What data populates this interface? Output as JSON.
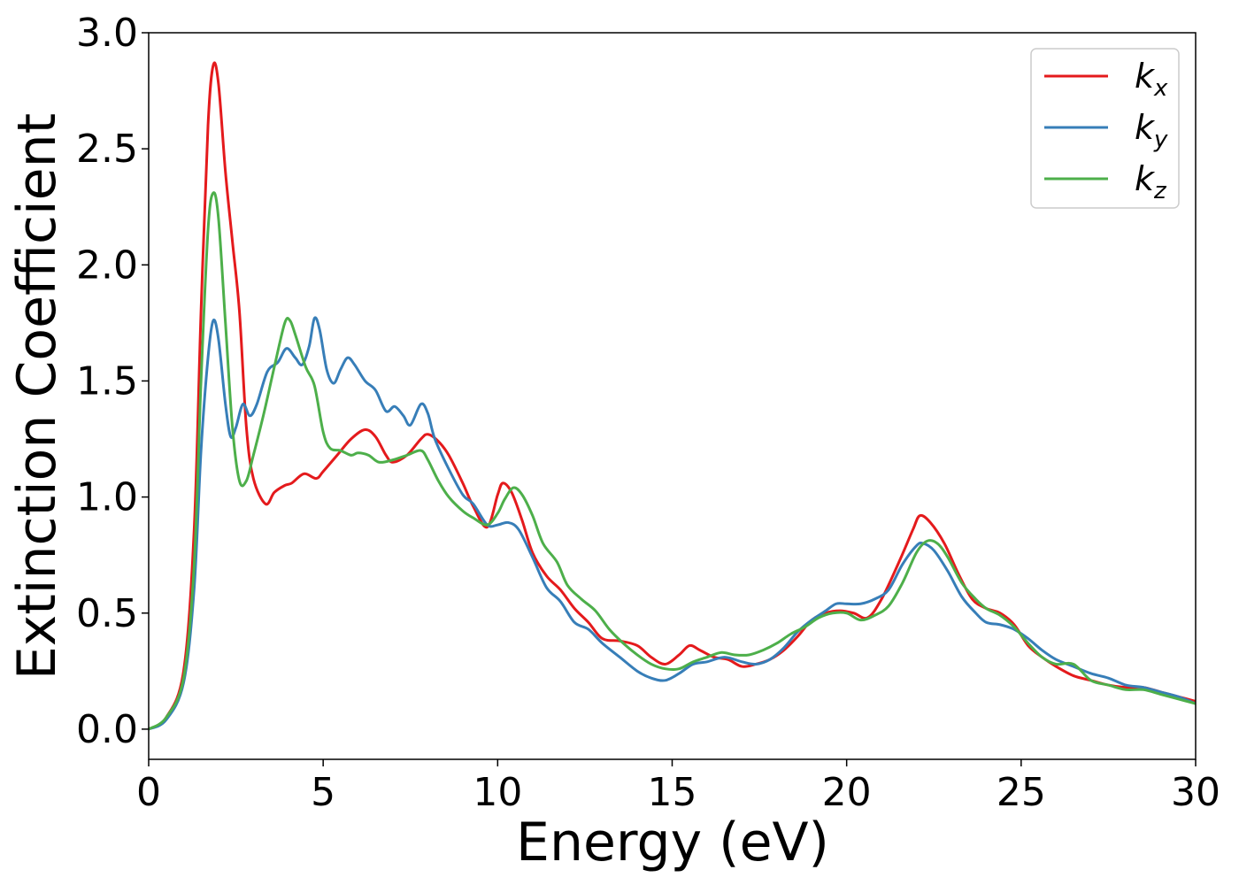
{
  "chart_data": {
    "type": "line",
    "title": "",
    "xlabel": "Energy (eV)",
    "ylabel": "Extinction Coefficient",
    "xlim": [
      0,
      30
    ],
    "ylim": [
      -0.13,
      3.0
    ],
    "xticks": [
      0,
      5,
      10,
      15,
      20,
      25,
      30
    ],
    "xtick_labels": [
      "0",
      "5",
      "10",
      "15",
      "20",
      "25",
      "30"
    ],
    "yticks": [
      0.0,
      0.5,
      1.0,
      1.5,
      2.0,
      2.5,
      3.0
    ],
    "ytick_labels": [
      "0.0",
      "0.5",
      "1.0",
      "1.5",
      "2.0",
      "2.5",
      "3.0"
    ],
    "grid": false,
    "legend_position": "top-right",
    "series": [
      {
        "name": "k_x",
        "label_main": "k",
        "label_sub": "x",
        "color": "#e41a1c",
        "points": [
          [
            0,
            0
          ],
          [
            0.5,
            0.05
          ],
          [
            1.0,
            0.25
          ],
          [
            1.3,
            0.85
          ],
          [
            1.5,
            1.8
          ],
          [
            1.7,
            2.6
          ],
          [
            1.85,
            2.86
          ],
          [
            2.0,
            2.78
          ],
          [
            2.2,
            2.4
          ],
          [
            2.4,
            2.1
          ],
          [
            2.6,
            1.8
          ],
          [
            2.8,
            1.3
          ],
          [
            3.0,
            1.08
          ],
          [
            3.35,
            0.97
          ],
          [
            3.6,
            1.02
          ],
          [
            3.9,
            1.05
          ],
          [
            4.1,
            1.06
          ],
          [
            4.45,
            1.1
          ],
          [
            4.8,
            1.08
          ],
          [
            5.0,
            1.11
          ],
          [
            5.4,
            1.18
          ],
          [
            5.8,
            1.25
          ],
          [
            6.2,
            1.29
          ],
          [
            6.5,
            1.26
          ],
          [
            6.8,
            1.18
          ],
          [
            7.0,
            1.15
          ],
          [
            7.4,
            1.18
          ],
          [
            7.8,
            1.25
          ],
          [
            8.0,
            1.27
          ],
          [
            8.3,
            1.24
          ],
          [
            8.6,
            1.18
          ],
          [
            9.0,
            1.06
          ],
          [
            9.3,
            0.96
          ],
          [
            9.7,
            0.87
          ],
          [
            10.0,
            1.01
          ],
          [
            10.15,
            1.06
          ],
          [
            10.4,
            1.02
          ],
          [
            10.7,
            0.9
          ],
          [
            11.0,
            0.76
          ],
          [
            11.4,
            0.66
          ],
          [
            11.8,
            0.6
          ],
          [
            12.2,
            0.52
          ],
          [
            12.6,
            0.46
          ],
          [
            13.0,
            0.39
          ],
          [
            13.5,
            0.38
          ],
          [
            14.0,
            0.36
          ],
          [
            14.4,
            0.31
          ],
          [
            14.8,
            0.28
          ],
          [
            15.2,
            0.32
          ],
          [
            15.5,
            0.36
          ],
          [
            15.8,
            0.34
          ],
          [
            16.2,
            0.31
          ],
          [
            16.6,
            0.3
          ],
          [
            17.0,
            0.27
          ],
          [
            17.4,
            0.28
          ],
          [
            17.8,
            0.3
          ],
          [
            18.2,
            0.34
          ],
          [
            18.6,
            0.4
          ],
          [
            19.0,
            0.47
          ],
          [
            19.4,
            0.5
          ],
          [
            19.8,
            0.51
          ],
          [
            20.2,
            0.5
          ],
          [
            20.6,
            0.48
          ],
          [
            21.0,
            0.56
          ],
          [
            21.5,
            0.72
          ],
          [
            21.9,
            0.86
          ],
          [
            22.1,
            0.92
          ],
          [
            22.4,
            0.89
          ],
          [
            22.8,
            0.8
          ],
          [
            23.2,
            0.67
          ],
          [
            23.6,
            0.56
          ],
          [
            24.0,
            0.52
          ],
          [
            24.4,
            0.5
          ],
          [
            24.8,
            0.45
          ],
          [
            25.2,
            0.36
          ],
          [
            25.6,
            0.31
          ],
          [
            26.0,
            0.27
          ],
          [
            26.5,
            0.23
          ],
          [
            27.0,
            0.21
          ],
          [
            27.5,
            0.19
          ],
          [
            28.0,
            0.18
          ],
          [
            28.5,
            0.18
          ],
          [
            29.0,
            0.16
          ],
          [
            29.5,
            0.14
          ],
          [
            30,
            0.12
          ]
        ]
      },
      {
        "name": "k_y",
        "label_main": "k",
        "label_sub": "y",
        "color": "#377eb8",
        "points": [
          [
            0,
            0
          ],
          [
            0.5,
            0.04
          ],
          [
            1.0,
            0.2
          ],
          [
            1.3,
            0.6
          ],
          [
            1.5,
            1.2
          ],
          [
            1.7,
            1.6
          ],
          [
            1.85,
            1.76
          ],
          [
            2.0,
            1.68
          ],
          [
            2.2,
            1.4
          ],
          [
            2.35,
            1.26
          ],
          [
            2.5,
            1.3
          ],
          [
            2.7,
            1.4
          ],
          [
            2.9,
            1.35
          ],
          [
            3.1,
            1.4
          ],
          [
            3.4,
            1.54
          ],
          [
            3.7,
            1.58
          ],
          [
            3.95,
            1.64
          ],
          [
            4.2,
            1.6
          ],
          [
            4.4,
            1.57
          ],
          [
            4.6,
            1.65
          ],
          [
            4.75,
            1.77
          ],
          [
            4.9,
            1.72
          ],
          [
            5.1,
            1.55
          ],
          [
            5.3,
            1.49
          ],
          [
            5.5,
            1.55
          ],
          [
            5.7,
            1.6
          ],
          [
            5.9,
            1.57
          ],
          [
            6.2,
            1.5
          ],
          [
            6.5,
            1.46
          ],
          [
            6.8,
            1.37
          ],
          [
            7.05,
            1.39
          ],
          [
            7.3,
            1.35
          ],
          [
            7.5,
            1.31
          ],
          [
            7.8,
            1.4
          ],
          [
            8.0,
            1.36
          ],
          [
            8.2,
            1.25
          ],
          [
            8.6,
            1.12
          ],
          [
            9.0,
            1.01
          ],
          [
            9.3,
            0.97
          ],
          [
            9.7,
            0.88
          ],
          [
            10.0,
            0.88
          ],
          [
            10.3,
            0.89
          ],
          [
            10.6,
            0.86
          ],
          [
            11.0,
            0.74
          ],
          [
            11.4,
            0.61
          ],
          [
            11.8,
            0.55
          ],
          [
            12.2,
            0.46
          ],
          [
            12.6,
            0.43
          ],
          [
            13.0,
            0.37
          ],
          [
            13.5,
            0.31
          ],
          [
            14.0,
            0.25
          ],
          [
            14.4,
            0.22
          ],
          [
            14.8,
            0.21
          ],
          [
            15.2,
            0.24
          ],
          [
            15.6,
            0.28
          ],
          [
            16.0,
            0.29
          ],
          [
            16.5,
            0.31
          ],
          [
            17.0,
            0.29
          ],
          [
            17.4,
            0.28
          ],
          [
            17.8,
            0.3
          ],
          [
            18.2,
            0.35
          ],
          [
            18.6,
            0.42
          ],
          [
            19.0,
            0.47
          ],
          [
            19.4,
            0.51
          ],
          [
            19.7,
            0.54
          ],
          [
            20.0,
            0.54
          ],
          [
            20.4,
            0.54
          ],
          [
            20.8,
            0.56
          ],
          [
            21.2,
            0.6
          ],
          [
            21.6,
            0.71
          ],
          [
            22.0,
            0.79
          ],
          [
            22.2,
            0.8
          ],
          [
            22.5,
            0.77
          ],
          [
            22.9,
            0.68
          ],
          [
            23.3,
            0.57
          ],
          [
            23.7,
            0.5
          ],
          [
            24.0,
            0.46
          ],
          [
            24.4,
            0.45
          ],
          [
            24.8,
            0.43
          ],
          [
            25.2,
            0.39
          ],
          [
            25.6,
            0.34
          ],
          [
            26.0,
            0.3
          ],
          [
            26.5,
            0.27
          ],
          [
            27.0,
            0.24
          ],
          [
            27.5,
            0.22
          ],
          [
            28.0,
            0.19
          ],
          [
            28.5,
            0.18
          ],
          [
            29.0,
            0.16
          ],
          [
            29.5,
            0.14
          ],
          [
            30,
            0.11
          ]
        ]
      },
      {
        "name": "k_z",
        "label_main": "k",
        "label_sub": "z",
        "color": "#4daf4a",
        "points": [
          [
            0,
            0
          ],
          [
            0.5,
            0.05
          ],
          [
            1.0,
            0.22
          ],
          [
            1.3,
            0.7
          ],
          [
            1.5,
            1.5
          ],
          [
            1.7,
            2.15
          ],
          [
            1.85,
            2.31
          ],
          [
            2.0,
            2.2
          ],
          [
            2.2,
            1.75
          ],
          [
            2.4,
            1.3
          ],
          [
            2.6,
            1.07
          ],
          [
            2.8,
            1.07
          ],
          [
            3.0,
            1.18
          ],
          [
            3.3,
            1.36
          ],
          [
            3.6,
            1.56
          ],
          [
            3.9,
            1.75
          ],
          [
            4.05,
            1.76
          ],
          [
            4.2,
            1.7
          ],
          [
            4.5,
            1.56
          ],
          [
            4.75,
            1.48
          ],
          [
            5.0,
            1.28
          ],
          [
            5.2,
            1.21
          ],
          [
            5.5,
            1.2
          ],
          [
            5.8,
            1.18
          ],
          [
            6.0,
            1.19
          ],
          [
            6.3,
            1.18
          ],
          [
            6.6,
            1.15
          ],
          [
            7.0,
            1.16
          ],
          [
            7.4,
            1.18
          ],
          [
            7.8,
            1.2
          ],
          [
            8.0,
            1.16
          ],
          [
            8.3,
            1.07
          ],
          [
            8.6,
            1.0
          ],
          [
            9.0,
            0.94
          ],
          [
            9.3,
            0.91
          ],
          [
            9.7,
            0.88
          ],
          [
            10.0,
            0.93
          ],
          [
            10.2,
            0.99
          ],
          [
            10.45,
            1.04
          ],
          [
            10.7,
            1.01
          ],
          [
            11.0,
            0.92
          ],
          [
            11.3,
            0.8
          ],
          [
            11.7,
            0.72
          ],
          [
            12.0,
            0.62
          ],
          [
            12.4,
            0.56
          ],
          [
            12.8,
            0.51
          ],
          [
            13.2,
            0.43
          ],
          [
            13.6,
            0.37
          ],
          [
            14.0,
            0.32
          ],
          [
            14.4,
            0.28
          ],
          [
            14.8,
            0.26
          ],
          [
            15.2,
            0.26
          ],
          [
            15.6,
            0.29
          ],
          [
            16.0,
            0.31
          ],
          [
            16.4,
            0.33
          ],
          [
            16.8,
            0.32
          ],
          [
            17.2,
            0.32
          ],
          [
            17.6,
            0.34
          ],
          [
            18.0,
            0.37
          ],
          [
            18.4,
            0.41
          ],
          [
            18.8,
            0.44
          ],
          [
            19.2,
            0.48
          ],
          [
            19.6,
            0.5
          ],
          [
            20.0,
            0.5
          ],
          [
            20.4,
            0.47
          ],
          [
            20.8,
            0.49
          ],
          [
            21.2,
            0.53
          ],
          [
            21.6,
            0.63
          ],
          [
            22.0,
            0.76
          ],
          [
            22.3,
            0.81
          ],
          [
            22.6,
            0.8
          ],
          [
            22.9,
            0.74
          ],
          [
            23.3,
            0.63
          ],
          [
            23.7,
            0.56
          ],
          [
            24.0,
            0.52
          ],
          [
            24.4,
            0.49
          ],
          [
            24.8,
            0.44
          ],
          [
            25.2,
            0.37
          ],
          [
            25.6,
            0.31
          ],
          [
            26.0,
            0.28
          ],
          [
            26.5,
            0.28
          ],
          [
            27.0,
            0.21
          ],
          [
            27.5,
            0.19
          ],
          [
            28.0,
            0.17
          ],
          [
            28.5,
            0.17
          ],
          [
            29.0,
            0.15
          ],
          [
            29.5,
            0.13
          ],
          [
            30,
            0.11
          ]
        ]
      }
    ]
  }
}
